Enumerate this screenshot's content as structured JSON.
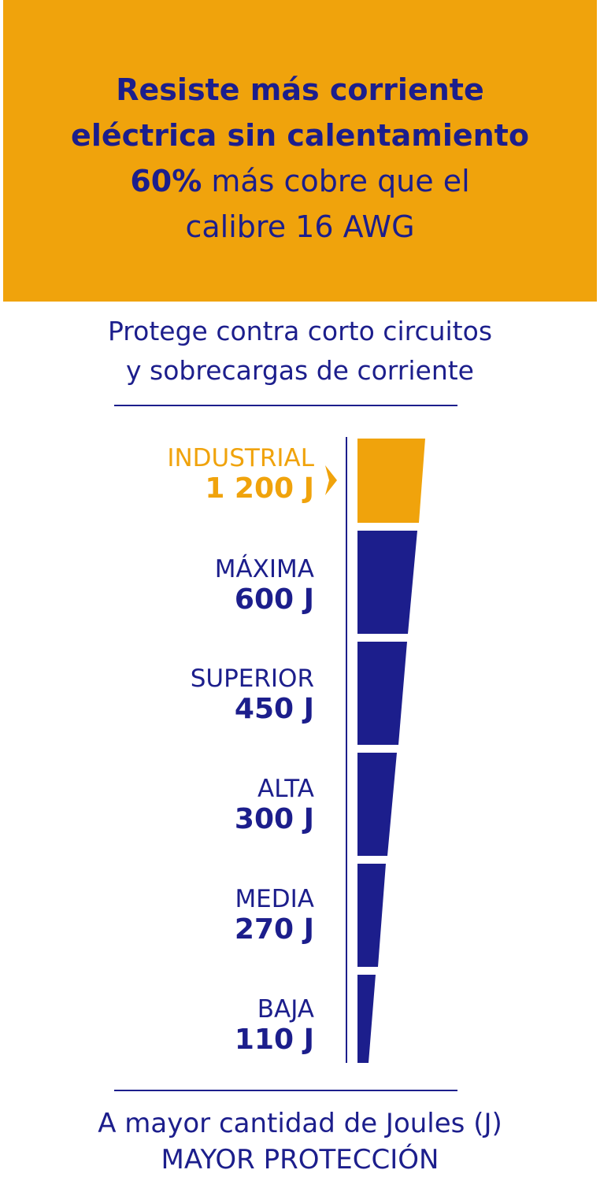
{
  "banner": {
    "line1": "Resiste más corriente",
    "line2": "eléctrica sin calentamiento",
    "line3_pct": "60%",
    "line3_rest": " más cobre que el",
    "line4": "calibre 16 AWG"
  },
  "subtitle": {
    "line1": "Protege contra corto circuitos",
    "line2": "y sobrecargas de corriente"
  },
  "levels": [
    {
      "name": "INDUSTRIAL",
      "value": "1 200 J",
      "joules": 1200,
      "highlight": true
    },
    {
      "name": "MÁXIMA",
      "value": "600 J",
      "joules": 600,
      "highlight": false
    },
    {
      "name": "SUPERIOR",
      "value": "450 J",
      "joules": 450,
      "highlight": false
    },
    {
      "name": "ALTA",
      "value": "300 J",
      "joules": 300,
      "highlight": false
    },
    {
      "name": "MEDIA",
      "value": "270 J",
      "joules": 270,
      "highlight": false
    },
    {
      "name": "BAJA",
      "value": "110 J",
      "joules": 110,
      "highlight": false
    }
  ],
  "footer": {
    "line1": "A mayor cantidad de Joules (J)",
    "line2": "MAYOR PROTECCIÓN"
  },
  "colors": {
    "accent": "#f0a30c",
    "primary": "#1c1e8c",
    "background": "#ffffff"
  },
  "icons": {
    "pointer": "chevron-right-icon"
  }
}
